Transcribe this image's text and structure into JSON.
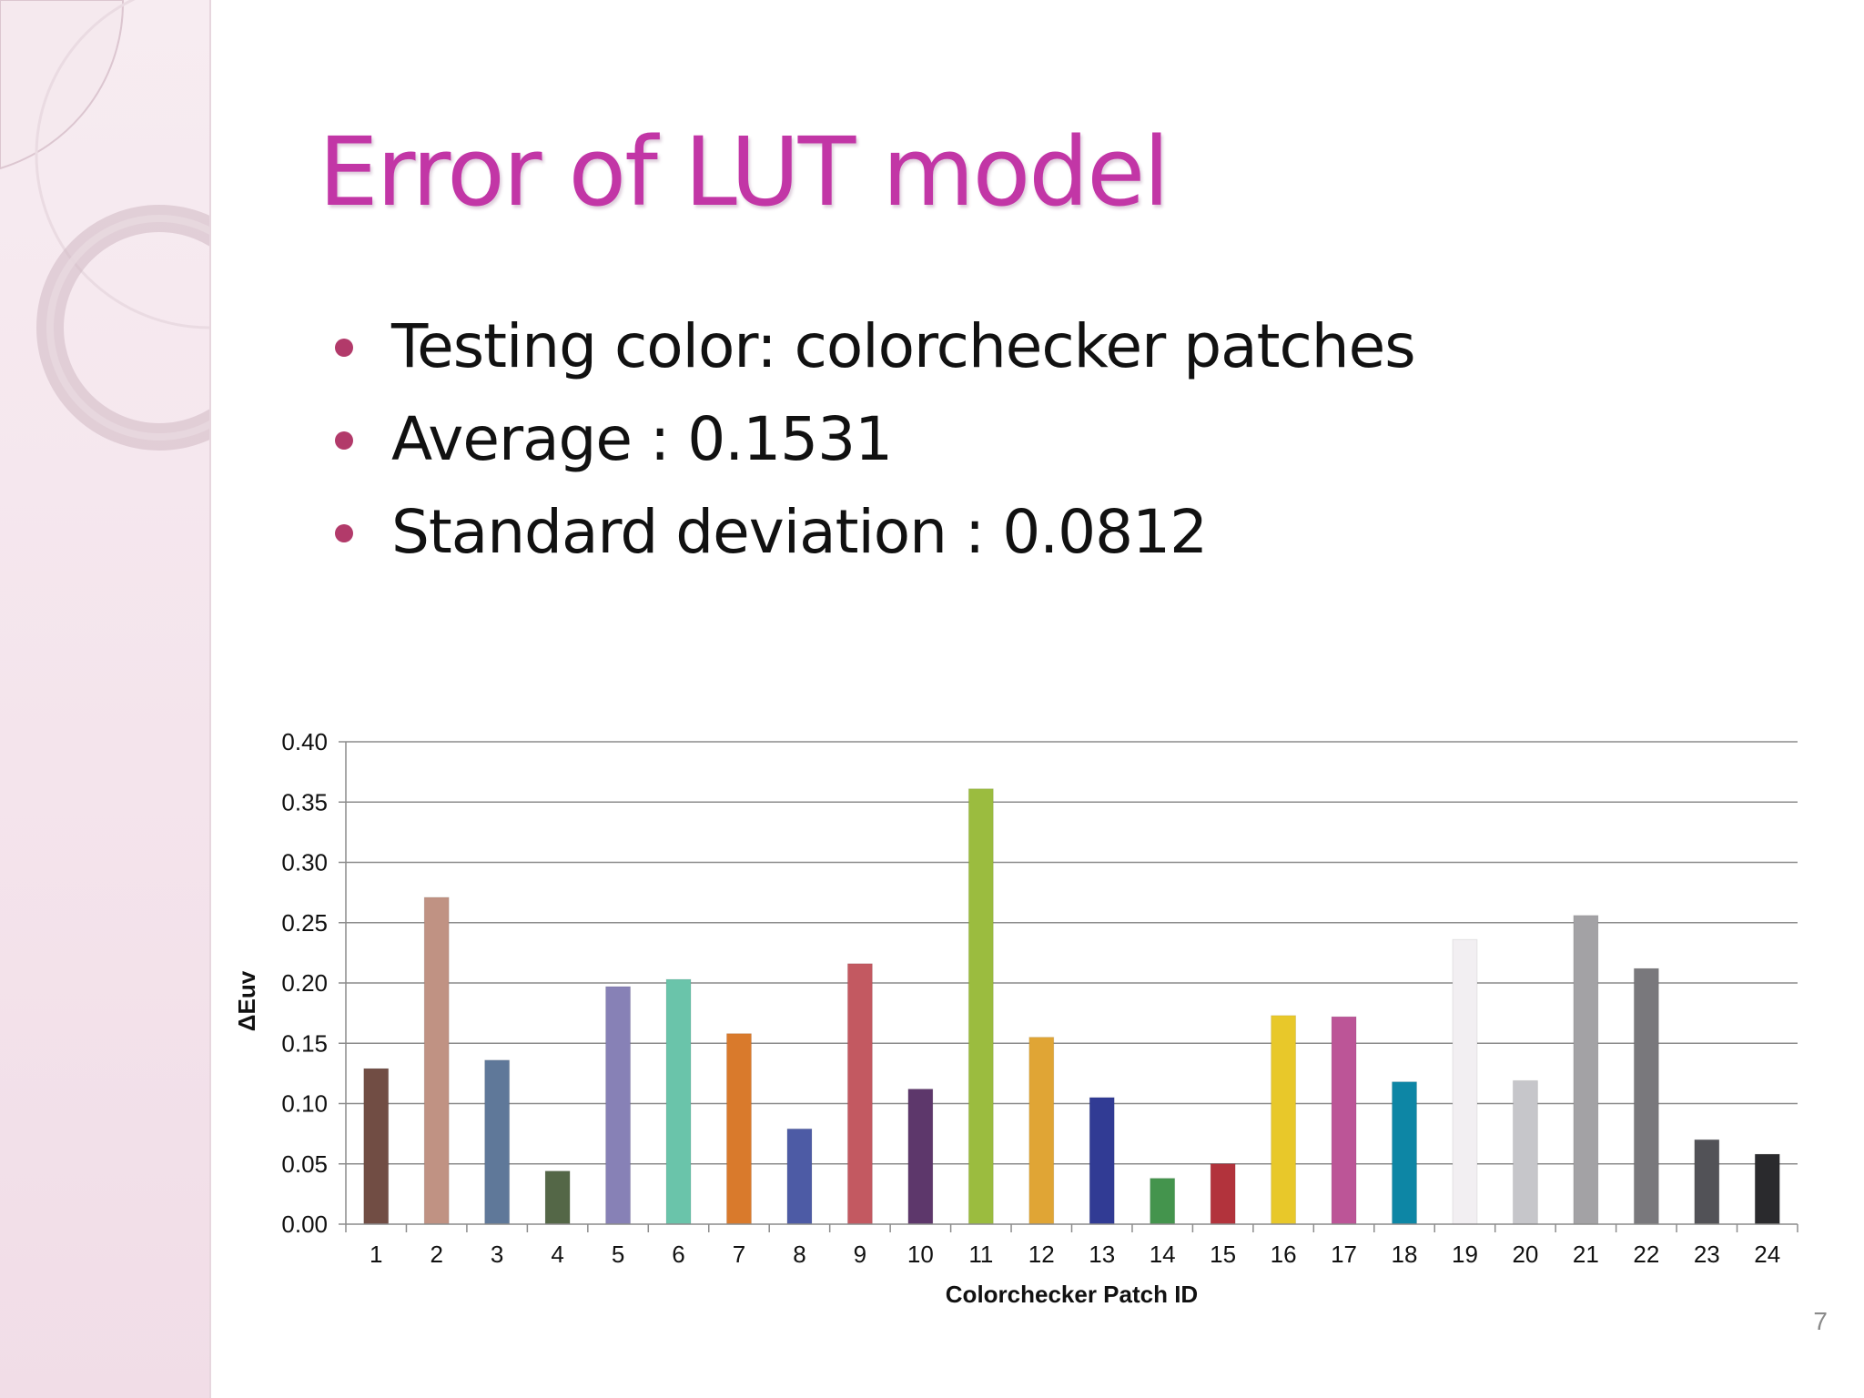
{
  "slide": {
    "title": "Error of LUT model",
    "bullets": [
      "Testing color: colorchecker patches",
      "Average : 0.1531",
      "Standard deviation : 0.0812"
    ],
    "page_number": "7"
  },
  "chart_data": {
    "type": "bar",
    "title": "",
    "xlabel": "Colorchecker Patch ID",
    "ylabel": "ΔEuv",
    "ylim": [
      0,
      0.4
    ],
    "yticks": [
      "0.00",
      "0.05",
      "0.10",
      "0.15",
      "0.20",
      "0.25",
      "0.30",
      "0.35",
      "0.40"
    ],
    "grid": true,
    "categories": [
      "1",
      "2",
      "3",
      "4",
      "5",
      "6",
      "7",
      "8",
      "9",
      "10",
      "11",
      "12",
      "13",
      "14",
      "15",
      "16",
      "17",
      "18",
      "19",
      "20",
      "21",
      "22",
      "23",
      "24"
    ],
    "values": [
      0.129,
      0.271,
      0.136,
      0.044,
      0.197,
      0.203,
      0.158,
      0.079,
      0.216,
      0.112,
      0.361,
      0.155,
      0.105,
      0.038,
      0.05,
      0.173,
      0.172,
      0.118,
      0.236,
      0.119,
      0.256,
      0.212,
      0.07,
      0.058
    ],
    "colors": [
      "#714d44",
      "#c09283",
      "#5f7899",
      "#546747",
      "#8781b6",
      "#6ac4aa",
      "#d97a2c",
      "#4d5ba5",
      "#c35961",
      "#5d376b",
      "#9bbc3f",
      "#e0a535",
      "#313b94",
      "#44944d",
      "#b2333c",
      "#e8c82a",
      "#bc5597",
      "#0d86a5",
      "#f2eff2",
      "#c6c6ca",
      "#a3a2a5",
      "#79787c",
      "#525257",
      "#2a2a2d"
    ]
  }
}
